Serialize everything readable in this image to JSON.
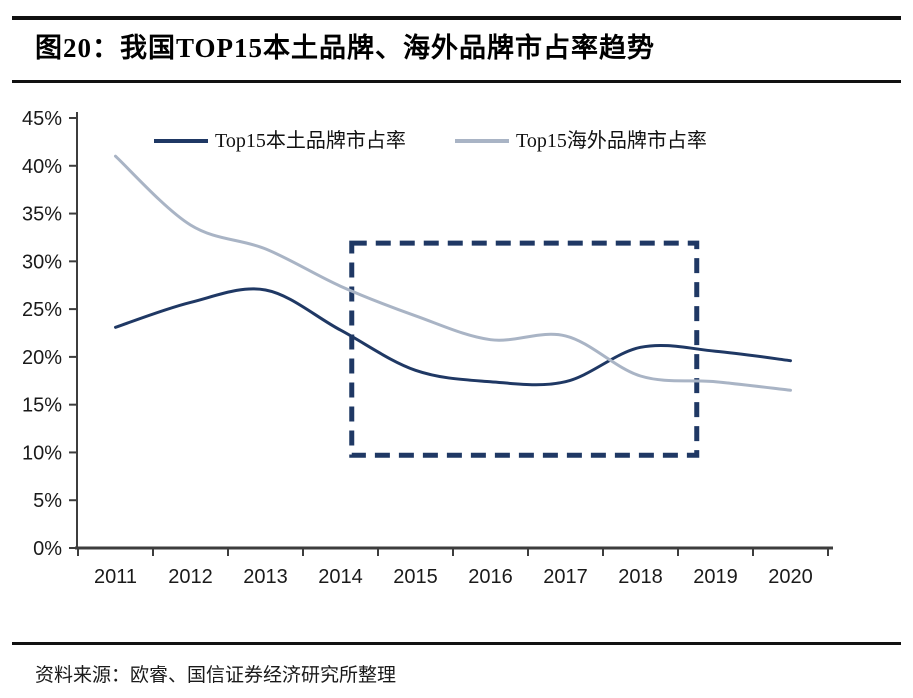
{
  "figure": {
    "title": "图20：我国TOP15本土品牌、海外品牌市占率趋势",
    "source": "资料来源：欧睿、国信证券经济研究所整理"
  },
  "colors": {
    "domestic_line": "#1F3864",
    "overseas_line": "#A9B4C5",
    "highlight_box": "#1F3864",
    "axis": "#3d3d3d",
    "rule": "#111111"
  },
  "chart_data": {
    "type": "line",
    "title": "",
    "xlabel": "",
    "ylabel": "",
    "x": [
      2011,
      2012,
      2013,
      2014,
      2015,
      2016,
      2017,
      2018,
      2019,
      2020
    ],
    "x_tick_labels": [
      "2011",
      "2012",
      "2013",
      "2014",
      "2015",
      "2016",
      "2017",
      "2018",
      "2019",
      "2020"
    ],
    "series": [
      {
        "name": "Top15本土品牌市占率",
        "color_key": "domestic_line",
        "values": [
          23.1,
          25.7,
          27.0,
          22.8,
          18.6,
          17.4,
          17.4,
          21.0,
          20.6,
          19.6
        ]
      },
      {
        "name": "Top15海外品牌市占率",
        "color_key": "overseas_line",
        "values": [
          41.0,
          33.8,
          31.3,
          27.4,
          24.3,
          21.8,
          22.2,
          18.0,
          17.4,
          16.5
        ]
      }
    ],
    "ylim": [
      0,
      45
    ],
    "y_tick_step": 5,
    "y_tick_labels": [
      "0%",
      "5%",
      "10%",
      "15%",
      "20%",
      "25%",
      "30%",
      "35%",
      "40%",
      "45%"
    ],
    "grid": false,
    "legend_position": "top",
    "line_style": "smooth",
    "annotation": {
      "type": "dashed-rectangle",
      "x_range": [
        2014.15,
        2018.75
      ],
      "y_range": [
        9.7,
        31.9
      ]
    }
  }
}
